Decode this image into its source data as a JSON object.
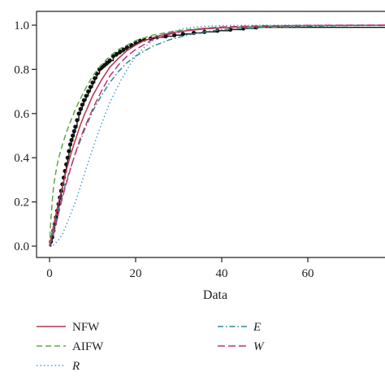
{
  "chart_data": {
    "type": "line",
    "title": "",
    "xlabel": "Data",
    "ylabel": "",
    "xlim": [
      -3,
      80
    ],
    "ylim": [
      -0.04,
      1.04
    ],
    "xticks": [
      0,
      20,
      40,
      60
    ],
    "yticks": [
      0.0,
      0.2,
      0.4,
      0.6,
      0.8,
      1.0
    ],
    "xtick_labels": [
      "0",
      "20",
      "40",
      "60"
    ],
    "ytick_labels": [
      "0.0",
      "0.2",
      "0.4",
      "0.6",
      "0.8",
      "1.0"
    ],
    "grid": false,
    "legend_position": "bottom",
    "empirical": {
      "x": [
        0.3,
        0.6,
        0.9,
        1.2,
        1.5,
        1.8,
        2.1,
        2.4,
        2.7,
        3.0,
        3.3,
        3.6,
        3.9,
        4.2,
        4.5,
        4.8,
        5.1,
        5.4,
        5.7,
        6.0,
        6.4,
        6.8,
        7.2,
        7.6,
        8.0,
        8.5,
        9.0,
        9.5,
        10.0,
        10.5,
        11.0,
        11.6,
        12.2,
        12.8,
        13.4,
        14.0,
        14.8,
        15.6,
        16.4,
        17.2,
        18.0,
        19.0,
        20.0,
        21.0,
        22.0,
        23.5,
        25.0,
        27.0,
        29.0,
        31.0,
        33.5,
        36.0,
        39.0,
        42.0,
        45.0,
        48.0
      ],
      "y": [
        0.02,
        0.04,
        0.07,
        0.1,
        0.13,
        0.16,
        0.19,
        0.22,
        0.25,
        0.28,
        0.31,
        0.34,
        0.37,
        0.4,
        0.43,
        0.46,
        0.48,
        0.5,
        0.52,
        0.54,
        0.57,
        0.6,
        0.62,
        0.64,
        0.66,
        0.68,
        0.7,
        0.72,
        0.74,
        0.76,
        0.78,
        0.8,
        0.81,
        0.82,
        0.83,
        0.84,
        0.86,
        0.87,
        0.88,
        0.89,
        0.9,
        0.91,
        0.92,
        0.93,
        0.935,
        0.94,
        0.945,
        0.95,
        0.955,
        0.96,
        0.965,
        0.97,
        0.975,
        0.98,
        0.985,
        0.99
      ]
    },
    "series": [
      {
        "name": "NFW",
        "color": "#b5334b",
        "dash": "solid",
        "x": [
          0,
          1,
          2,
          3,
          4,
          5,
          6,
          7,
          8,
          10,
          12,
          14,
          16,
          18,
          20,
          22,
          25,
          28,
          32,
          36,
          40,
          45,
          50,
          55,
          60,
          70,
          80
        ],
        "y": [
          0.0,
          0.1,
          0.19,
          0.27,
          0.35,
          0.42,
          0.48,
          0.54,
          0.59,
          0.68,
          0.75,
          0.81,
          0.85,
          0.885,
          0.91,
          0.93,
          0.95,
          0.965,
          0.975,
          0.983,
          0.988,
          0.992,
          0.995,
          0.997,
          0.998,
          0.999,
          1.0
        ]
      },
      {
        "name": "AIFW",
        "color": "#5fa845",
        "dash": "dashed",
        "x": [
          0,
          0.3,
          0.7,
          1,
          1.5,
          2,
          3,
          4,
          5,
          6,
          8,
          10,
          12,
          14,
          16,
          18,
          20,
          24,
          28,
          32,
          36,
          40,
          50,
          60,
          70,
          80
        ],
        "y": [
          0.0,
          0.12,
          0.22,
          0.28,
          0.34,
          0.39,
          0.46,
          0.52,
          0.57,
          0.62,
          0.7,
          0.77,
          0.82,
          0.86,
          0.89,
          0.91,
          0.93,
          0.955,
          0.97,
          0.98,
          0.986,
          0.99,
          0.995,
          0.998,
          0.999,
          1.0
        ]
      },
      {
        "name": "R",
        "color": "#4f9bd8",
        "dash": "dotted",
        "x": [
          0,
          1,
          2,
          3,
          4,
          5,
          6,
          7,
          8,
          9,
          10,
          12,
          14,
          16,
          18,
          20,
          22,
          25,
          28,
          32,
          36,
          40,
          45,
          50,
          60,
          80
        ],
        "y": [
          0.0,
          0.006,
          0.025,
          0.055,
          0.1,
          0.15,
          0.2,
          0.26,
          0.32,
          0.38,
          0.44,
          0.55,
          0.65,
          0.73,
          0.8,
          0.86,
          0.9,
          0.945,
          0.97,
          0.988,
          0.995,
          0.998,
          0.999,
          1.0,
          1.0,
          1.0
        ]
      },
      {
        "name": "E",
        "color": "#2e8b8b",
        "dash": "dashdot",
        "x": [
          0,
          1,
          2,
          3,
          4,
          5,
          6,
          8,
          10,
          12,
          14,
          16,
          18,
          20,
          24,
          28,
          32,
          36,
          40,
          50,
          60,
          70,
          80
        ],
        "y": [
          0.0,
          0.08,
          0.16,
          0.23,
          0.3,
          0.36,
          0.42,
          0.52,
          0.61,
          0.68,
          0.74,
          0.79,
          0.83,
          0.86,
          0.905,
          0.935,
          0.955,
          0.97,
          0.98,
          0.99,
          0.995,
          0.998,
          0.999
        ]
      },
      {
        "name": "W",
        "color": "#c0307a",
        "dash": "longdash",
        "x": [
          0,
          1,
          2,
          3,
          4,
          5,
          6,
          7,
          8,
          10,
          12,
          14,
          16,
          18,
          20,
          24,
          28,
          32,
          36,
          40,
          45,
          50,
          60,
          70,
          80
        ],
        "y": [
          0.0,
          0.06,
          0.14,
          0.22,
          0.29,
          0.36,
          0.42,
          0.48,
          0.53,
          0.62,
          0.7,
          0.77,
          0.82,
          0.86,
          0.89,
          0.935,
          0.96,
          0.976,
          0.986,
          0.992,
          0.995,
          0.997,
          0.999,
          1.0,
          1.0
        ]
      }
    ]
  },
  "legend": {
    "items": [
      {
        "label": "NFW",
        "italic": false
      },
      {
        "label": "AIFW",
        "italic": false
      },
      {
        "label": "R",
        "italic": true
      },
      {
        "label": "E",
        "italic": true
      },
      {
        "label": "W",
        "italic": true
      }
    ]
  }
}
